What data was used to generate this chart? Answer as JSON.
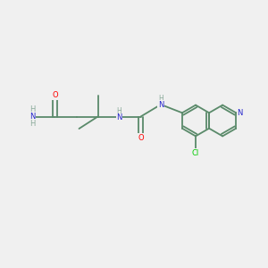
{
  "background_color": "#f0f0f0",
  "bond_color": "#5a8a6a",
  "atom_colors": {
    "O": "#ff0000",
    "N": "#2222cc",
    "Cl": "#00cc00",
    "C": "#5a8a6a",
    "H": "#8aaa9a"
  },
  "figsize": [
    3.0,
    3.0
  ],
  "dpi": 100
}
